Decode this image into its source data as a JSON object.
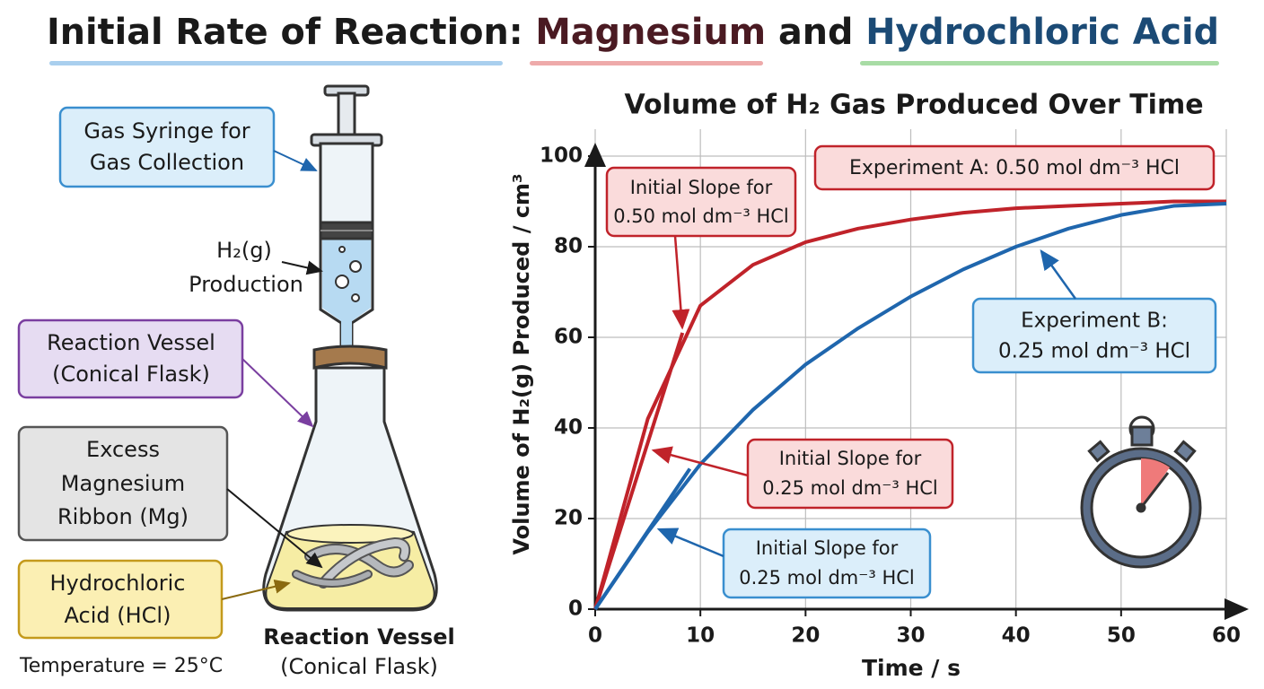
{
  "header": {
    "title": [
      {
        "text": "Initial Rate of Reaction: ",
        "color": "#1a1a1a"
      },
      {
        "text": "Magnesium",
        "color": "#4a1a22"
      },
      {
        "text": " and ",
        "color": "#1a1a1a"
      },
      {
        "text": "Hydrochloric Acid",
        "color": "#1b4a75"
      }
    ]
  },
  "diagram": {
    "syringe_label": [
      "Gas Syringe for",
      "Gas Collection"
    ],
    "gas_label": [
      "H₂(g)",
      "Production"
    ],
    "vessel_label": [
      "Reaction Vessel",
      "(Conical Flask)"
    ],
    "magnesium_label": [
      "Excess",
      "Magnesium",
      "Ribbon (Mg)"
    ],
    "acid_label": [
      "Hydrochloric",
      "Acid (HCl)"
    ],
    "temperature": "Temperature = 25°C",
    "caption": [
      "Reaction Vessel",
      "(Conical Flask)"
    ]
  },
  "chart_data": {
    "type": "line",
    "title": "Volume of H₂ Gas Produced Over Time",
    "x_label": "Time / s",
    "y_label": "Volume of H₂(g) Produced / cm³",
    "x": [
      0,
      5,
      10,
      15,
      20,
      25,
      30,
      35,
      40,
      45,
      50,
      55,
      60
    ],
    "series": [
      {
        "name": "Experiment A: 0.50 mol dm⁻³ HCl",
        "color": "#c0232a",
        "values": [
          0,
          42,
          67,
          76,
          81,
          84,
          86,
          87.5,
          88.5,
          89,
          89.5,
          90,
          90
        ]
      },
      {
        "name": "Experiment B: 0.25 mol dm⁻³ HCl",
        "color": "#1f66ad",
        "values": [
          0,
          17,
          32,
          44,
          54,
          62,
          69,
          75,
          80,
          84,
          87,
          89,
          89.5
        ]
      }
    ],
    "tangents": [
      {
        "color": "#c0232a",
        "x": [
          0,
          8.3
        ],
        "y": [
          0,
          61
        ]
      },
      {
        "color": "#1f66ad",
        "x": [
          0,
          9
        ],
        "y": [
          0,
          31
        ]
      }
    ],
    "annotations": [
      {
        "lines": [
          "Initial Slope for",
          "0.50 mol dm⁻³ HCl"
        ]
      },
      {
        "lines": [
          "Experiment B:",
          "0.25 mol dm⁻³ HCl"
        ]
      },
      {
        "lines": [
          "Initial Slope for",
          "0.25 mol dm⁻³ HCl"
        ]
      },
      {
        "lines": [
          "Initial Slope for",
          "0.25 mol dm⁻³ HCl"
        ]
      }
    ],
    "xlim": [
      0,
      60
    ],
    "ylim": [
      0,
      100
    ],
    "xticks": [
      0,
      10,
      20,
      30,
      40,
      50,
      60
    ],
    "yticks": [
      0,
      20,
      40,
      60,
      80,
      100
    ],
    "grid": true
  }
}
